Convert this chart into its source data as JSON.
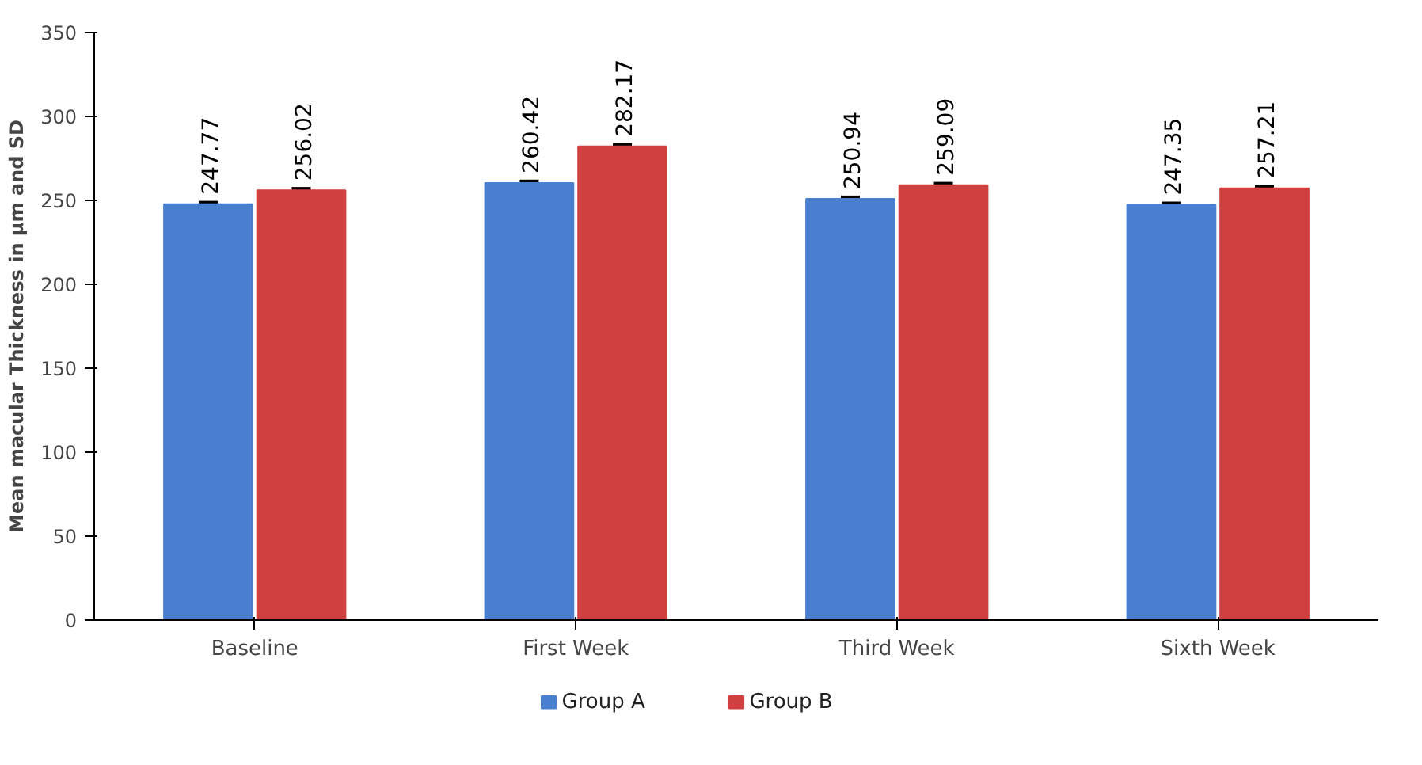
{
  "chart_data": {
    "type": "bar",
    "ylabel": "Mean macular Thickness in µm and SD",
    "categories": [
      "Baseline",
      "First Week",
      "Third Week",
      "Sixth Week"
    ],
    "series": [
      {
        "name": "Group A",
        "color": "#4a7fd0",
        "values": [
          247.77,
          260.42,
          250.94,
          247.35
        ],
        "errors": [
          1,
          1,
          1,
          1
        ]
      },
      {
        "name": "Group B",
        "color": "#d04040",
        "values": [
          256.02,
          282.17,
          259.09,
          257.21
        ],
        "errors": [
          1,
          1,
          1,
          1
        ]
      }
    ],
    "ylim": [
      0,
      350
    ],
    "yticks": [
      0,
      50,
      100,
      150,
      200,
      250,
      300,
      350
    ],
    "data_labels": true,
    "grid": false,
    "legend": "bottom"
  }
}
